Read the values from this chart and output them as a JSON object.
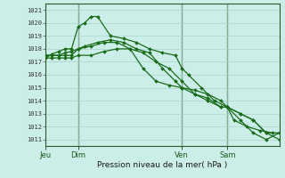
{
  "title": "Pression niveau de la mer( hPa )",
  "ylabel_values": [
    1011,
    1012,
    1013,
    1014,
    1015,
    1016,
    1017,
    1018,
    1019,
    1020,
    1021
  ],
  "bg_color": "#cceee8",
  "grid_color": "#aad4cc",
  "line_color": "#1a6b1a",
  "day_labels": [
    "Jeu",
    "Dim",
    "Ven",
    "Sam"
  ],
  "day_positions": [
    0,
    30,
    126,
    168
  ],
  "xlim": [
    0,
    216
  ],
  "ylim": [
    1010.5,
    1021.5
  ],
  "vline_positions": [
    30,
    126,
    168
  ],
  "series": [
    {
      "x": [
        0,
        6,
        12,
        18,
        24,
        30,
        36,
        42,
        48,
        60,
        72,
        84,
        96,
        108,
        120,
        126,
        132,
        144,
        156,
        168,
        174,
        186,
        198,
        210,
        216
      ],
      "y": [
        1017.3,
        1017.6,
        1017.8,
        1018.0,
        1018.0,
        1019.7,
        1020.0,
        1020.5,
        1020.5,
        1019.0,
        1018.8,
        1018.5,
        1018.0,
        1017.7,
        1017.5,
        1016.5,
        1016.0,
        1015.0,
        1014.0,
        1013.5,
        1012.5,
        1012.0,
        1011.7,
        1011.5,
        1011.5
      ]
    },
    {
      "x": [
        0,
        6,
        12,
        18,
        24,
        30,
        36,
        48,
        60,
        72,
        84,
        96,
        108,
        120,
        126,
        138,
        150,
        162,
        168,
        180,
        192,
        204,
        216
      ],
      "y": [
        1017.5,
        1017.5,
        1017.5,
        1017.5,
        1017.5,
        1018.0,
        1018.2,
        1018.5,
        1018.7,
        1018.5,
        1018.0,
        1017.7,
        1016.5,
        1015.5,
        1015.0,
        1014.8,
        1014.5,
        1014.0,
        1013.5,
        1012.5,
        1011.5,
        1011.0,
        1011.5
      ]
    },
    {
      "x": [
        0,
        6,
        12,
        18,
        24,
        30,
        42,
        54,
        66,
        78,
        90,
        102,
        114,
        126,
        138,
        150,
        162,
        168,
        180,
        192,
        204,
        216
      ],
      "y": [
        1017.3,
        1017.3,
        1017.3,
        1017.3,
        1017.3,
        1017.5,
        1017.5,
        1017.8,
        1018.0,
        1018.0,
        1017.7,
        1017.0,
        1016.5,
        1015.5,
        1014.5,
        1014.0,
        1013.5,
        1013.5,
        1013.0,
        1012.5,
        1011.5,
        1011.5
      ]
    },
    {
      "x": [
        0,
        6,
        12,
        18,
        24,
        30,
        42,
        54,
        66,
        78,
        90,
        102,
        114,
        126,
        138,
        150,
        162,
        168,
        180,
        192,
        204,
        216
      ],
      "y": [
        1017.5,
        1017.5,
        1017.5,
        1017.7,
        1017.8,
        1018.0,
        1018.2,
        1018.5,
        1018.5,
        1018.0,
        1016.5,
        1015.5,
        1015.2,
        1015.0,
        1014.5,
        1014.2,
        1013.5,
        1013.5,
        1013.0,
        1012.5,
        1011.5,
        1011.0
      ]
    }
  ],
  "marker": "D",
  "marker_size": 2.0,
  "linewidth": 0.9
}
